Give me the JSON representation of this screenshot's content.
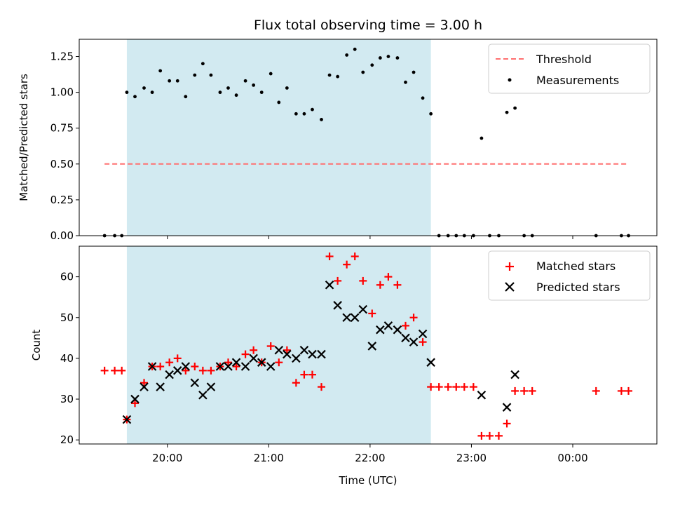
{
  "chart_data": [
    {
      "type": "scatter",
      "title": "Flux total observing time = 3.00 h",
      "xlabel": "",
      "ylabel": "Matched/Predicted stars",
      "ylim": [
        0,
        1.37
      ],
      "yticks": [
        "0.00",
        "0.25",
        "0.50",
        "0.75",
        "1.00",
        "1.25"
      ],
      "yticks_values": [
        0,
        0.25,
        0.5,
        0.75,
        1.0,
        1.25
      ],
      "xlim": [
        19.13,
        24.83
      ],
      "grid": false,
      "legend_position": "top-right",
      "shaded_interval": {
        "x_start": 19.6,
        "x_end": 22.6,
        "color": "#add8e6"
      },
      "series": [
        {
          "name": "Threshold",
          "kind": "dashed-line",
          "color": "#ff7070",
          "x": [
            19.38,
            24.55
          ],
          "y": [
            0.5,
            0.5
          ]
        },
        {
          "name": "Measurements",
          "kind": "points",
          "color": "#000000",
          "x": [
            19.38,
            19.48,
            19.55,
            19.6,
            19.68,
            19.77,
            19.85,
            19.93,
            20.02,
            20.1,
            20.18,
            20.27,
            20.35,
            20.43,
            20.52,
            20.6,
            20.68,
            20.77,
            20.85,
            20.93,
            21.02,
            21.1,
            21.18,
            21.27,
            21.35,
            21.43,
            21.52,
            21.6,
            21.68,
            21.77,
            21.85,
            21.93,
            22.02,
            22.1,
            22.18,
            22.27,
            22.35,
            22.43,
            22.52,
            22.6,
            22.68,
            22.77,
            22.85,
            22.93,
            23.02,
            23.1,
            23.18,
            23.27,
            23.35,
            23.43,
            23.52,
            23.6,
            24.23,
            24.48,
            24.55
          ],
          "y": [
            0,
            0,
            0,
            1.0,
            0.97,
            1.03,
            1.0,
            1.15,
            1.08,
            1.08,
            0.97,
            1.12,
            1.2,
            1.12,
            1.0,
            1.03,
            0.98,
            1.08,
            1.05,
            1.0,
            1.13,
            0.93,
            1.03,
            0.85,
            0.85,
            0.88,
            0.81,
            1.12,
            1.11,
            1.26,
            1.3,
            1.14,
            1.19,
            1.24,
            1.25,
            1.24,
            1.07,
            1.14,
            0.96,
            0.85,
            0,
            0,
            0,
            0,
            0,
            0.68,
            0,
            0,
            0.86,
            0.89,
            0,
            0,
            0,
            0,
            0
          ]
        }
      ]
    },
    {
      "type": "scatter",
      "title": "",
      "xlabel": "Time (UTC)",
      "ylabel": "Count",
      "ylim": [
        19,
        67.5
      ],
      "yticks": [
        "20",
        "30",
        "40",
        "50",
        "60"
      ],
      "yticks_values": [
        20,
        30,
        40,
        50,
        60
      ],
      "xlim": [
        19.13,
        24.83
      ],
      "xticks": [
        "20:00",
        "21:00",
        "22:00",
        "23:00",
        "00:00"
      ],
      "xticks_values": [
        20,
        21,
        22,
        23,
        24
      ],
      "grid": false,
      "legend_position": "top-right",
      "shaded_interval": {
        "x_start": 19.6,
        "x_end": 22.6,
        "color": "#add8e6"
      },
      "series": [
        {
          "name": "Matched stars",
          "kind": "plus",
          "color": "#ff0000",
          "x": [
            19.38,
            19.48,
            19.55,
            19.6,
            19.68,
            19.77,
            19.85,
            19.93,
            20.02,
            20.1,
            20.18,
            20.27,
            20.35,
            20.43,
            20.52,
            20.6,
            20.68,
            20.77,
            20.85,
            20.93,
            21.02,
            21.1,
            21.18,
            21.27,
            21.35,
            21.43,
            21.52,
            21.6,
            21.68,
            21.77,
            21.85,
            21.93,
            22.02,
            22.1,
            22.18,
            22.27,
            22.35,
            22.43,
            22.52,
            22.6,
            22.68,
            22.77,
            22.85,
            22.93,
            23.02,
            23.1,
            23.18,
            23.27,
            23.35,
            23.43,
            23.52,
            23.6,
            24.23,
            24.48,
            24.55
          ],
          "y": [
            37,
            37,
            37,
            25,
            29,
            34,
            38,
            38,
            39,
            40,
            37,
            38,
            37,
            37,
            38,
            39,
            38,
            41,
            42,
            39,
            43,
            39,
            42,
            34,
            36,
            36,
            33,
            65,
            59,
            63,
            65,
            59,
            51,
            58,
            60,
            58,
            48,
            50,
            44,
            33,
            33,
            33,
            33,
            33,
            33,
            21,
            21,
            21,
            24,
            32,
            32,
            32,
            32,
            32,
            32
          ]
        },
        {
          "name": "Predicted stars",
          "kind": "cross",
          "color": "#000000",
          "x": [
            19.6,
            19.68,
            19.77,
            19.85,
            19.93,
            20.02,
            20.1,
            20.18,
            20.27,
            20.35,
            20.43,
            20.52,
            20.6,
            20.68,
            20.77,
            20.85,
            20.93,
            21.02,
            21.1,
            21.18,
            21.27,
            21.35,
            21.43,
            21.52,
            21.6,
            21.68,
            21.77,
            21.85,
            21.93,
            22.02,
            22.1,
            22.18,
            22.27,
            22.35,
            22.43,
            22.52,
            22.6,
            23.1,
            23.35,
            23.43
          ],
          "y": [
            25,
            30,
            33,
            38,
            33,
            36,
            37,
            38,
            34,
            31,
            33,
            38,
            38,
            39,
            38,
            40,
            39,
            38,
            42,
            41,
            40,
            42,
            41,
            41,
            58,
            53,
            50,
            50,
            52,
            43,
            47,
            48,
            47,
            45,
            44,
            46,
            39,
            31,
            28,
            36
          ]
        }
      ]
    }
  ]
}
